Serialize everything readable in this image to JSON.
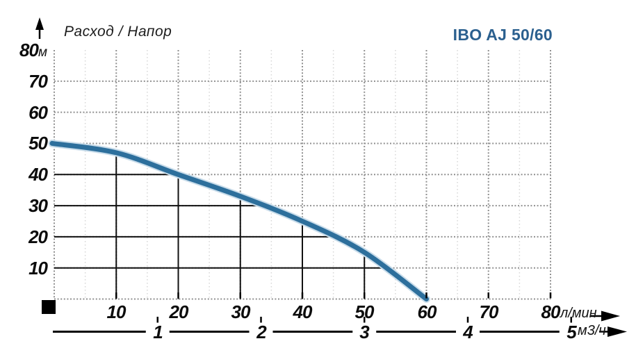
{
  "header": {
    "axis_title": "Расход / Напор",
    "model": "IBO AJ 50/60",
    "model_color": "#2b608f"
  },
  "chart_data": {
    "type": "line",
    "title": "Расход / Напор",
    "series": [
      {
        "name": "IBO AJ 50/60",
        "x": [
          0,
          10,
          20,
          30,
          40,
          50,
          60
        ],
        "y": [
          50,
          47,
          40,
          33,
          25,
          15,
          0
        ]
      }
    ],
    "xlabel": "л/мин",
    "x2label": "м3/ч",
    "ylabel": "м",
    "xlim": [
      0,
      80
    ],
    "ylim": [
      0,
      80
    ],
    "x_ticks": [
      10,
      20,
      30,
      40,
      50,
      60,
      70,
      80
    ],
    "y_ticks": [
      10,
      20,
      30,
      40,
      50,
      60,
      70,
      80
    ],
    "x2_ticks": [
      1,
      2,
      3,
      4,
      5
    ],
    "x2_lmin_per_unit": 16.667,
    "grid": "dotted, minor verticals every 5 л/мин; solid black guide grid under curve",
    "legend": "none",
    "colors": {
      "curve": "#2d6f9c",
      "curve_halo": "#c8dcea",
      "grid_major": "#8f8f8f",
      "grid_minor": "#d6d6d6",
      "solid_guides": "#111111",
      "text": "#0c0c0c"
    }
  }
}
